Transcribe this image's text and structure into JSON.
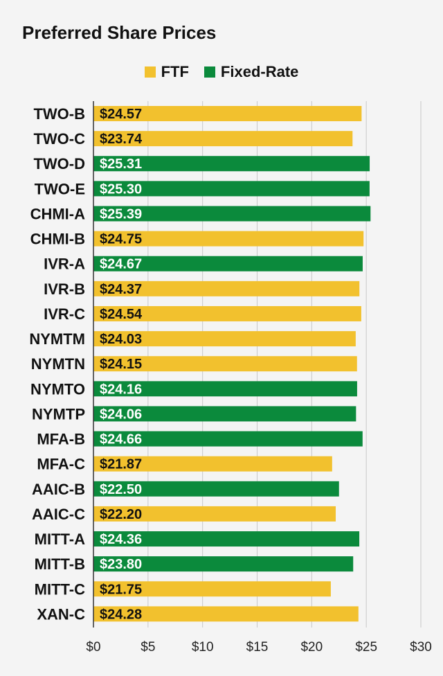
{
  "chart_data": {
    "type": "bar",
    "orientation": "horizontal",
    "title": "Preferred Share Prices",
    "legend": {
      "placement": "top-center",
      "entries": [
        {
          "name": "FTF",
          "color": "#f2c12e"
        },
        {
          "name": "Fixed-Rate",
          "color": "#0b8a3c"
        }
      ]
    },
    "categories": [
      "TWO-B",
      "TWO-C",
      "TWO-D",
      "TWO-E",
      "CHMI-A",
      "CHMI-B",
      "IVR-A",
      "IVR-B",
      "IVR-C",
      "NYMTM",
      "NYMTN",
      "NYMTO",
      "NYMTP",
      "MFA-B",
      "MFA-C",
      "AAIC-B",
      "AAIC-C",
      "MITT-A",
      "MITT-B",
      "MITT-C",
      "XAN-C"
    ],
    "values": [
      24.57,
      23.74,
      25.31,
      25.3,
      25.39,
      24.75,
      24.67,
      24.37,
      24.54,
      24.03,
      24.15,
      24.16,
      24.06,
      24.66,
      21.87,
      22.5,
      22.2,
      24.36,
      23.8,
      21.75,
      24.28
    ],
    "value_labels": [
      "$24.57",
      "$23.74",
      "$25.31",
      "$25.30",
      "$25.39",
      "$24.75",
      "$24.67",
      "$24.37",
      "$24.54",
      "$24.03",
      "$24.15",
      "$24.16",
      "$24.06",
      "$24.66",
      "$21.87",
      "$22.50",
      "$22.20",
      "$24.36",
      "$23.80",
      "$21.75",
      "$24.28"
    ],
    "series_membership": [
      "FTF",
      "FTF",
      "Fixed-Rate",
      "Fixed-Rate",
      "Fixed-Rate",
      "FTF",
      "Fixed-Rate",
      "FTF",
      "FTF",
      "FTF",
      "FTF",
      "Fixed-Rate",
      "Fixed-Rate",
      "Fixed-Rate",
      "FTF",
      "Fixed-Rate",
      "FTF",
      "Fixed-Rate",
      "Fixed-Rate",
      "FTF",
      "FTF"
    ],
    "xlim": [
      0,
      30
    ],
    "xticks": [
      0,
      5,
      10,
      15,
      20,
      25,
      30
    ],
    "xtick_labels": [
      "$0",
      "$5",
      "$10",
      "$15",
      "$20",
      "$25",
      "$30"
    ],
    "grid": "vertical",
    "xlabel": "",
    "ylabel": ""
  }
}
